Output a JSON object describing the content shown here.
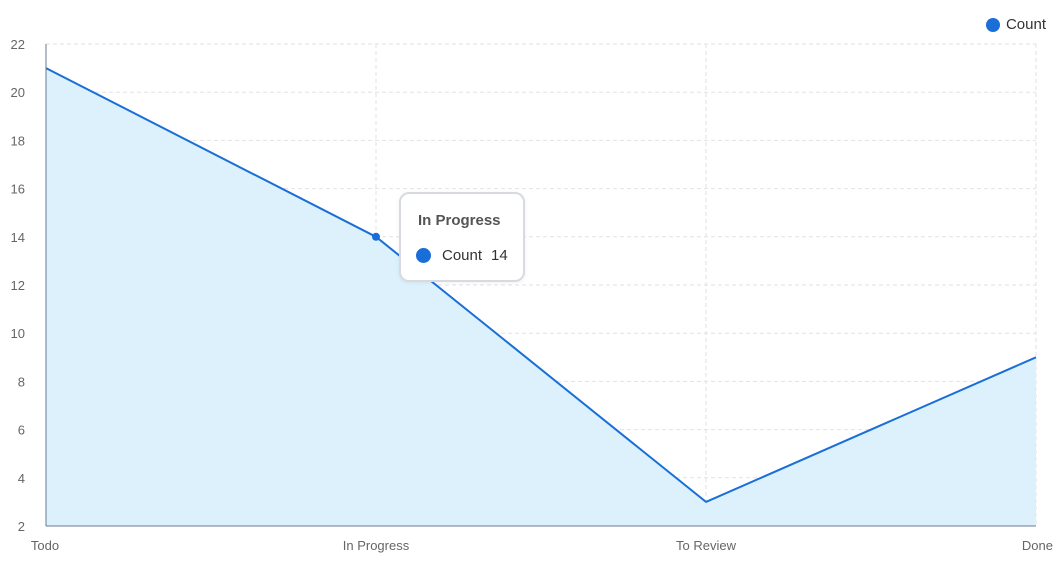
{
  "chart_data": {
    "type": "area",
    "title": "",
    "xlabel": "",
    "ylabel": "",
    "categories": [
      "Todo",
      "In Progress",
      "To Review",
      "Done"
    ],
    "series": [
      {
        "name": "Count",
        "values": [
          21,
          14,
          3,
          9
        ]
      }
    ],
    "ylim": [
      2,
      22
    ],
    "yticks": [
      2,
      4,
      6,
      8,
      10,
      12,
      14,
      16,
      18,
      20,
      22
    ],
    "grid": true,
    "legend_position": "top-right",
    "colors": {
      "line": "#1a6ed8",
      "fill": "#dcf1fb",
      "grid": "#e2e2e2",
      "axis": "#6b7a90"
    }
  },
  "tooltip": {
    "title": "In Progress",
    "series_name": "Count",
    "value": "14",
    "category_index": 1
  }
}
